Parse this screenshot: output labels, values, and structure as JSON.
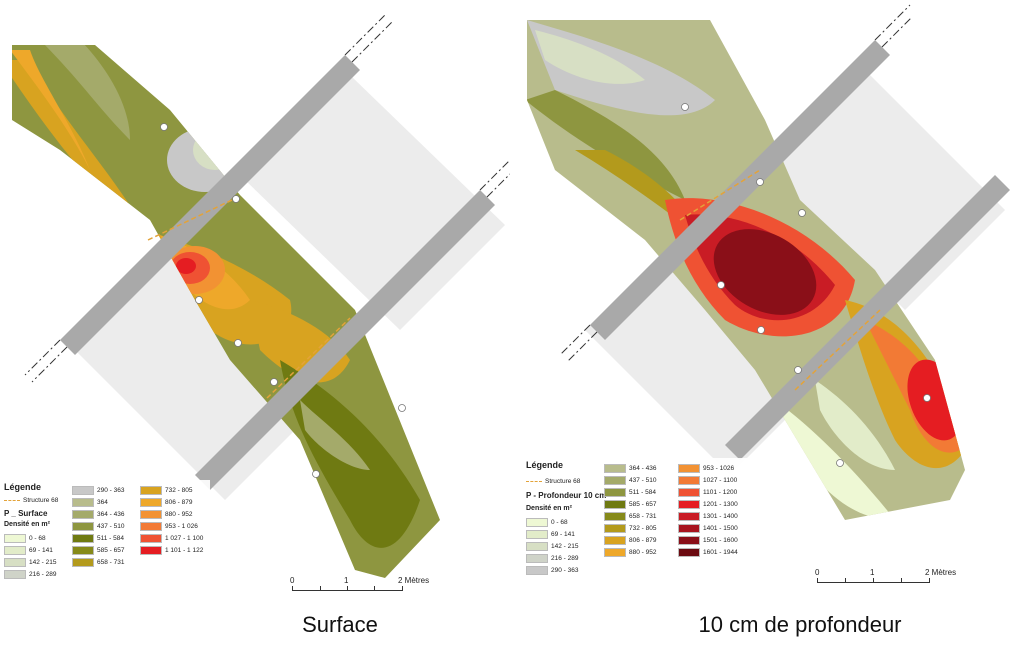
{
  "colors": {
    "surface_zone": "#ececec",
    "trench_band": "#a9a9a9",
    "structure_line": "#e3a33a"
  },
  "maps": [
    {
      "caption": "Surface",
      "legend": {
        "title": "Légende",
        "structure_label": "Structure 68",
        "layer_label": "P _ Surface",
        "unit_label": "Densité en m²",
        "classes": [
          {
            "label": "0 - 68",
            "color": "#eef8d4"
          },
          {
            "label": "69 - 141",
            "color": "#e2ecc9"
          },
          {
            "label": "142 - 215",
            "color": "#d7dfc4"
          },
          {
            "label": "216 - 289",
            "color": "#cfd3c8"
          },
          {
            "label": "290 - 363",
            "color": "#c8c8c8"
          },
          {
            "label": "364",
            "color": "#b8bc8c"
          },
          {
            "label": "364 - 436",
            "color": "#a4aa6a"
          },
          {
            "label": "437 - 510",
            "color": "#8e9640"
          },
          {
            "label": "511 - 584",
            "color": "#6f7a12"
          },
          {
            "label": "585 - 657",
            "color": "#868a1a"
          },
          {
            "label": "658 - 731",
            "color": "#b39a1c"
          },
          {
            "label": "732 - 805",
            "color": "#d8a320"
          },
          {
            "label": "806 - 879",
            "color": "#eea82a"
          },
          {
            "label": "880 - 952",
            "color": "#f29233"
          },
          {
            "label": "953 - 1 026",
            "color": "#f27a35"
          },
          {
            "label": "1 027 - 1 100",
            "color": "#ef5233"
          },
          {
            "label": "1 101 - 1 122",
            "color": "#e51d22"
          }
        ]
      },
      "scale": {
        "ticks": [
          "0",
          "1",
          "2 Mètres"
        ]
      }
    },
    {
      "caption": "10 cm de profondeur",
      "legend": {
        "title": "Légende",
        "structure_label": "Structure 68",
        "layer_label": "P - Profondeur 10 cm",
        "unit_label": "Densité en m²",
        "classes": [
          {
            "label": "0 - 68",
            "color": "#eef8d4"
          },
          {
            "label": "69 - 141",
            "color": "#e2ecc9"
          },
          {
            "label": "142 - 215",
            "color": "#d7dfc4"
          },
          {
            "label": "216 - 289",
            "color": "#cfd3c8"
          },
          {
            "label": "290 - 363",
            "color": "#c8c8c8"
          },
          {
            "label": "364 - 436",
            "color": "#b8bc8c"
          },
          {
            "label": "437 - 510",
            "color": "#a4aa6a"
          },
          {
            "label": "511 - 584",
            "color": "#8e9640"
          },
          {
            "label": "585 - 657",
            "color": "#6f7a12"
          },
          {
            "label": "658 - 731",
            "color": "#868a1a"
          },
          {
            "label": "732 - 805",
            "color": "#b39a1c"
          },
          {
            "label": "806 - 879",
            "color": "#d8a320"
          },
          {
            "label": "880 - 952",
            "color": "#eea82a"
          },
          {
            "label": "953 - 1026",
            "color": "#f29233"
          },
          {
            "label": "1027 - 1100",
            "color": "#f27a35"
          },
          {
            "label": "1101 - 1200",
            "color": "#ef5233"
          },
          {
            "label": "1201 - 1300",
            "color": "#e51d22"
          },
          {
            "label": "1301 - 1400",
            "color": "#c91c25"
          },
          {
            "label": "1401 - 1500",
            "color": "#a8141e"
          },
          {
            "label": "1501 - 1600",
            "color": "#8a0f18"
          },
          {
            "label": "1601 - 1944",
            "color": "#6b0a10"
          }
        ]
      },
      "scale": {
        "ticks": [
          "0",
          "1",
          "2 Mètres"
        ]
      }
    }
  ]
}
